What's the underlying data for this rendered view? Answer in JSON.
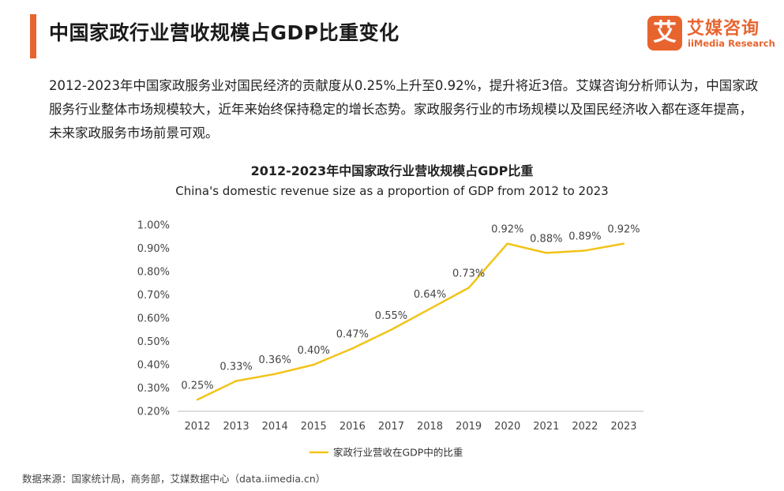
{
  "header": {
    "title": "中国家政行业营收规模占GDP比重变化",
    "accent_color": "#e8642f"
  },
  "logo": {
    "mark": "艾",
    "name_cn": "艾媒咨询",
    "name_en": "iiMedia Research"
  },
  "intro_text": "2012-2023年中国家政服务业对国民经济的贡献度从0.25%上升至0.92%，提升将近3倍。艾媒咨询分析师认为，中国家政服务行业整体市场规模较大，近年来始终保持稳定的增长态势。家政服务行业的市场规模以及国民经济收入都在逐年提高，未来家政服务市场前景可观。",
  "chart_data": {
    "type": "line",
    "title": "2012-2023年中国家政行业营收规模占GDP比重",
    "subtitle": "China's domestic revenue size as a proportion of GDP from 2012 to 2023",
    "categories": [
      "2012",
      "2013",
      "2014",
      "2015",
      "2016",
      "2017",
      "2018",
      "2019",
      "2020",
      "2021",
      "2022",
      "2023"
    ],
    "series": [
      {
        "name": "家政行业营收在GDP中的比重",
        "values": [
          0.25,
          0.33,
          0.36,
          0.4,
          0.47,
          0.55,
          0.64,
          0.73,
          0.92,
          0.88,
          0.89,
          0.92
        ],
        "labels": [
          "0.25%",
          "0.33%",
          "0.36%",
          "0.40%",
          "0.47%",
          "0.55%",
          "0.64%",
          "0.73%",
          "0.92%",
          "0.88%",
          "0.89%",
          "0.92%"
        ],
        "color": "#f2c318"
      }
    ],
    "ylim": [
      0.2,
      1.0
    ],
    "yticks": [
      "0.20%",
      "0.30%",
      "0.40%",
      "0.50%",
      "0.60%",
      "0.70%",
      "0.80%",
      "0.90%",
      "1.00%"
    ],
    "ytick_values": [
      0.2,
      0.3,
      0.4,
      0.5,
      0.6,
      0.7,
      0.8,
      0.9,
      1.0
    ],
    "xlabel": "",
    "ylabel": "",
    "grid": false,
    "legend": "bottom-center"
  },
  "footer": {
    "source": "数据来源：国家统计局，商务部，艾媒数据中心（data.iimedia.cn）"
  }
}
